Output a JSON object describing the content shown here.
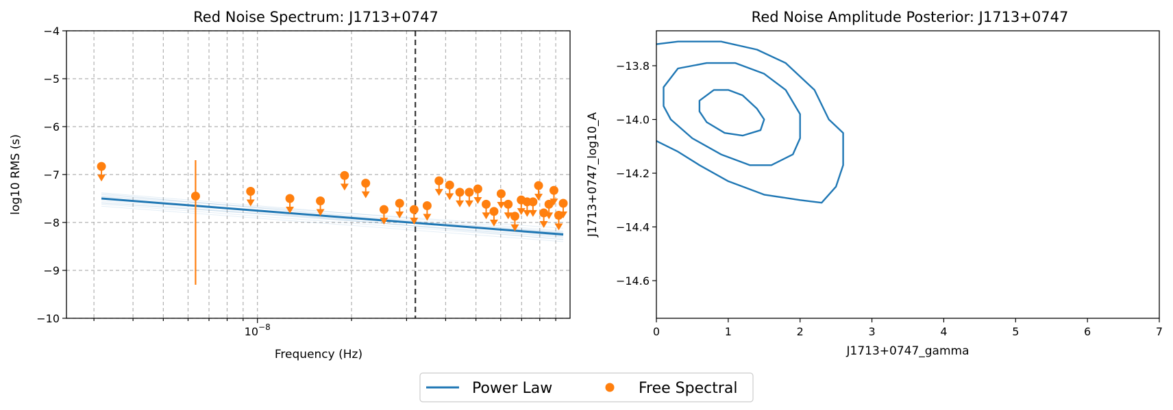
{
  "colors": {
    "power_law": "#1f77b4",
    "free_spectral": "#ff7f0e",
    "grid": "#b0b0b0",
    "vline": "#333333"
  },
  "legend": {
    "power_law_label": "Power Law",
    "free_spectral_label": "Free Spectral",
    "placement": "bottom-center"
  },
  "chart_data": [
    {
      "type": "line",
      "title": "Red Noise Spectrum: J1713+0747",
      "xlabel": "Frequency (Hz)",
      "ylabel": "log10 RMS (s)",
      "xscale": "log",
      "xlim": [
        2.45e-09,
        1e-07
      ],
      "ylim": [
        -10,
        -4
      ],
      "yticks": [
        -10,
        -9,
        -8,
        -7,
        -6,
        -5,
        -4
      ],
      "ytick_labels": [
        "−10",
        "−9",
        "−8",
        "−7",
        "−6",
        "−5",
        "−4"
      ],
      "xtick_label": {
        "value": 1e-08,
        "base": "10",
        "exponent": "−8"
      },
      "grid": true,
      "vertical_line": {
        "x": 3.2e-08,
        "style": "dashed"
      },
      "power_law": {
        "name": "Power Law",
        "x": [
          3.17e-09,
          9.51e-08
        ],
        "y": [
          -7.5,
          -8.25
        ]
      },
      "power_law_samples": [
        {
          "y": [
            -7.38,
            -8.18
          ]
        },
        {
          "y": [
            -7.42,
            -8.22
          ]
        },
        {
          "y": [
            -7.46,
            -8.28
          ]
        },
        {
          "y": [
            -7.55,
            -8.32
          ]
        },
        {
          "y": [
            -7.58,
            -8.3
          ]
        },
        {
          "y": [
            -7.62,
            -8.35
          ]
        },
        {
          "y": [
            -7.45,
            -8.12
          ]
        },
        {
          "y": [
            -7.52,
            -8.2
          ]
        },
        {
          "y": [
            -7.66,
            -8.4
          ]
        },
        {
          "y": [
            -7.4,
            -8.28
          ]
        },
        {
          "y": [
            -7.6,
            -8.22
          ]
        },
        {
          "y": [
            -7.48,
            -8.36
          ]
        }
      ],
      "free_spectral": {
        "name": "Free Spectral",
        "points": [
          {
            "x": 3.17e-09,
            "y": -6.83,
            "upper_limit": true
          },
          {
            "x": 6.34e-09,
            "y": -7.45,
            "upper_limit": false,
            "err_low": -9.3,
            "err_high": -6.7
          },
          {
            "x": 9.51e-09,
            "y": -7.35,
            "upper_limit": true
          },
          {
            "x": 1.27e-08,
            "y": -7.5,
            "upper_limit": true
          },
          {
            "x": 1.59e-08,
            "y": -7.55,
            "upper_limit": true
          },
          {
            "x": 1.9e-08,
            "y": -7.02,
            "upper_limit": true
          },
          {
            "x": 2.22e-08,
            "y": -7.18,
            "upper_limit": true
          },
          {
            "x": 2.54e-08,
            "y": -7.73,
            "upper_limit": true
          },
          {
            "x": 2.85e-08,
            "y": -7.6,
            "upper_limit": true
          },
          {
            "x": 3.17e-08,
            "y": -7.73,
            "upper_limit": true
          },
          {
            "x": 3.49e-08,
            "y": -7.65,
            "upper_limit": true
          },
          {
            "x": 3.81e-08,
            "y": -7.13,
            "upper_limit": true
          },
          {
            "x": 4.12e-08,
            "y": -7.22,
            "upper_limit": true
          },
          {
            "x": 4.44e-08,
            "y": -7.37,
            "upper_limit": true
          },
          {
            "x": 4.76e-08,
            "y": -7.37,
            "upper_limit": true
          },
          {
            "x": 5.07e-08,
            "y": -7.3,
            "upper_limit": true
          },
          {
            "x": 5.39e-08,
            "y": -7.62,
            "upper_limit": true
          },
          {
            "x": 5.71e-08,
            "y": -7.77,
            "upper_limit": true
          },
          {
            "x": 6.02e-08,
            "y": -7.4,
            "upper_limit": true
          },
          {
            "x": 6.34e-08,
            "y": -7.62,
            "upper_limit": true
          },
          {
            "x": 6.66e-08,
            "y": -7.87,
            "upper_limit": true
          },
          {
            "x": 6.98e-08,
            "y": -7.53,
            "upper_limit": true
          },
          {
            "x": 7.29e-08,
            "y": -7.57,
            "upper_limit": true
          },
          {
            "x": 7.61e-08,
            "y": -7.57,
            "upper_limit": true
          },
          {
            "x": 7.93e-08,
            "y": -7.23,
            "upper_limit": true
          },
          {
            "x": 8.24e-08,
            "y": -7.8,
            "upper_limit": true
          },
          {
            "x": 8.56e-08,
            "y": -7.62,
            "upper_limit": true
          },
          {
            "x": 8.88e-08,
            "y": -7.33,
            "upper_limit": true
          },
          {
            "x": 9.2e-08,
            "y": -7.85,
            "upper_limit": true
          },
          {
            "x": 9.51e-08,
            "y": -7.6,
            "upper_limit": true
          }
        ]
      }
    },
    {
      "type": "contour",
      "title": "Red Noise Amplitude Posterior: J1713+0747",
      "xlabel": "J1713+0747_gamma",
      "ylabel": "J1713+0747_log10_A",
      "xlim": [
        0,
        7
      ],
      "ylim": [
        -14.74,
        -13.67
      ],
      "xticks": [
        0,
        1,
        2,
        3,
        4,
        5,
        6,
        7
      ],
      "xtick_labels": [
        "0",
        "1",
        "2",
        "3",
        "4",
        "5",
        "6",
        "7"
      ],
      "yticks": [
        -14.6,
        -14.4,
        -14.2,
        -14.0,
        -13.8
      ],
      "ytick_labels": [
        "−14.6",
        "−14.4",
        "−14.2",
        "−14.0",
        "−13.8"
      ],
      "contours": [
        {
          "level": "inner",
          "points": [
            [
              0.6,
              -13.93
            ],
            [
              0.8,
              -13.89
            ],
            [
              1.0,
              -13.89
            ],
            [
              1.2,
              -13.91
            ],
            [
              1.4,
              -13.96
            ],
            [
              1.5,
              -14.0
            ],
            [
              1.45,
              -14.04
            ],
            [
              1.2,
              -14.06
            ],
            [
              0.95,
              -14.05
            ],
            [
              0.7,
              -14.01
            ],
            [
              0.6,
              -13.97
            ]
          ]
        },
        {
          "level": "middle",
          "points": [
            [
              0.1,
              -13.88
            ],
            [
              0.3,
              -13.81
            ],
            [
              0.7,
              -13.79
            ],
            [
              1.1,
              -13.79
            ],
            [
              1.5,
              -13.83
            ],
            [
              1.8,
              -13.89
            ],
            [
              2.0,
              -13.98
            ],
            [
              2.0,
              -14.07
            ],
            [
              1.9,
              -14.13
            ],
            [
              1.6,
              -14.17
            ],
            [
              1.3,
              -14.17
            ],
            [
              0.9,
              -14.13
            ],
            [
              0.5,
              -14.07
            ],
            [
              0.2,
              -14.0
            ],
            [
              0.1,
              -13.95
            ]
          ]
        },
        {
          "level": "outer",
          "points": [
            [
              0.0,
              -13.72
            ],
            [
              0.3,
              -13.71
            ],
            [
              0.9,
              -13.71
            ],
            [
              1.4,
              -13.74
            ],
            [
              1.8,
              -13.79
            ],
            [
              2.2,
              -13.89
            ],
            [
              2.4,
              -14.0
            ],
            [
              2.6,
              -14.05
            ],
            [
              2.6,
              -14.17
            ],
            [
              2.5,
              -14.25
            ],
            [
              2.3,
              -14.31
            ],
            [
              2.0,
              -14.3
            ],
            [
              1.5,
              -14.28
            ],
            [
              1.0,
              -14.23
            ],
            [
              0.6,
              -14.17
            ],
            [
              0.3,
              -14.12
            ],
            [
              0.0,
              -14.08
            ]
          ]
        }
      ]
    }
  ]
}
